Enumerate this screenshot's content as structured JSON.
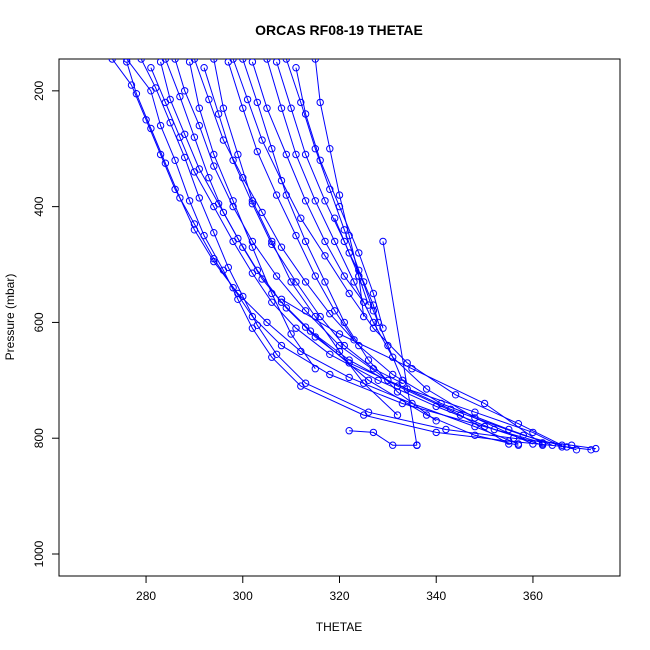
{
  "chart_data": {
    "type": "scatter",
    "title": "ORCAS RF08-19 THETAE",
    "xlabel": "THETAE",
    "ylabel": "Pressure (mbar)",
    "xlim": [
      262,
      378
    ],
    "ylim": [
      1038,
      145
    ],
    "y_reversed": true,
    "grid": false,
    "x_ticks": [
      280,
      300,
      320,
      340,
      360
    ],
    "y_ticks": [
      200,
      400,
      600,
      800,
      1000
    ],
    "series_color": "#0000ff",
    "marker": "open-circle",
    "series": [
      {
        "x": [
          276,
          281,
          283,
          286,
          289,
          292,
          296,
          299,
          302,
          306,
          312,
          325,
          340,
          355,
          367,
          372
        ],
        "y": [
          145,
          200,
          260,
          320,
          390,
          450,
          510,
          560,
          610,
          660,
          710,
          760,
          790,
          805,
          815,
          820
        ]
      },
      {
        "x": [
          279,
          282,
          285,
          288,
          291,
          294,
          297,
          300,
          303,
          307,
          313,
          326,
          342,
          356,
          368,
          373
        ],
        "y": [
          145,
          195,
          255,
          315,
          385,
          445,
          505,
          555,
          605,
          655,
          705,
          755,
          785,
          800,
          812,
          818
        ]
      },
      {
        "x": [
          273,
          277,
          280,
          283,
          286,
          290,
          294,
          298,
          302,
          308,
          318,
          333,
          350,
          362
        ],
        "y": [
          145,
          190,
          250,
          310,
          370,
          430,
          490,
          540,
          590,
          640,
          690,
          740,
          780,
          808
        ]
      },
      {
        "x": [
          284,
          287,
          290,
          293,
          296,
          300,
          304,
          309,
          315,
          322,
          334,
          348,
          360,
          366
        ],
        "y": [
          145,
          210,
          280,
          350,
          410,
          470,
          525,
          575,
          625,
          670,
          715,
          755,
          790,
          815
        ]
      },
      {
        "x": [
          290,
          293,
          296,
          300,
          304,
          308,
          313,
          318,
          324,
          331,
          341,
          355,
          364
        ],
        "y": [
          145,
          215,
          285,
          350,
          410,
          470,
          530,
          585,
          640,
          690,
          740,
          785,
          812
        ]
      },
      {
        "x": [
          298,
          301,
          304,
          308,
          312,
          317,
          322,
          327,
          334,
          344,
          357,
          366
        ],
        "y": [
          145,
          215,
          285,
          355,
          420,
          485,
          550,
          610,
          670,
          725,
          775,
          812
        ]
      },
      {
        "x": [
          305,
          308,
          311,
          315,
          319,
          323,
          327,
          331,
          338,
          348,
          360
        ],
        "y": [
          145,
          230,
          310,
          390,
          460,
          530,
          600,
          660,
          715,
          765,
          810
        ]
      },
      {
        "x": [
          309,
          312,
          315,
          318,
          321,
          324,
          327,
          330,
          333
        ],
        "y": [
          145,
          220,
          300,
          370,
          440,
          510,
          580,
          640,
          700
        ]
      },
      {
        "x": [
          315,
          316,
          318,
          320,
          322,
          324,
          325
        ],
        "y": [
          145,
          220,
          300,
          380,
          450,
          520,
          590
        ]
      },
      {
        "x": [
          286,
          288,
          291,
          294,
          298,
          302,
          307,
          313,
          320,
          330,
          343,
          358,
          369
        ],
        "y": [
          145,
          200,
          260,
          330,
          400,
          460,
          520,
          580,
          640,
          700,
          750,
          795,
          820
        ]
      },
      {
        "x": [
          294,
          296,
          299,
          302,
          306,
          310,
          315,
          320,
          325,
          332
        ],
        "y": [
          145,
          230,
          310,
          390,
          460,
          530,
          590,
          650,
          705,
          760
        ]
      },
      {
        "x": [
          300,
          303,
          306,
          309,
          313,
          317,
          321,
          326,
          332,
          340
        ],
        "y": [
          145,
          220,
          300,
          380,
          460,
          530,
          600,
          665,
          720,
          770
        ]
      },
      {
        "x": [
          281,
          284,
          287,
          290,
          294,
          298,
          302,
          306,
          311,
          318,
          328,
          340,
          352,
          362
        ],
        "y": [
          160,
          220,
          280,
          340,
          400,
          460,
          515,
          565,
          610,
          655,
          700,
          745,
          785,
          812
        ]
      },
      {
        "x": [
          311,
          313,
          316,
          320,
          324,
          327,
          329
        ],
        "y": [
          160,
          240,
          320,
          400,
          480,
          550,
          610
        ]
      },
      {
        "x": [
          276,
          278,
          281,
          284,
          287,
          290,
          294,
          299,
          305,
          312,
          322,
          335,
          348,
          357
        ],
        "y": [
          150,
          205,
          265,
          325,
          385,
          440,
          495,
          550,
          600,
          650,
          695,
          740,
          780,
          810
        ]
      },
      {
        "x": [
          292,
          295,
          298,
          302,
          306,
          311,
          316,
          321,
          327,
          333
        ],
        "y": [
          160,
          240,
          320,
          395,
          465,
          530,
          590,
          640,
          680,
          705
        ]
      },
      {
        "x": [
          302,
          305,
          309,
          313,
          317,
          321,
          325
        ],
        "y": [
          150,
          230,
          310,
          390,
          460,
          520,
          565
        ]
      },
      {
        "x": [
          297,
          300,
          303,
          307,
          311,
          315,
          319,
          323
        ],
        "y": [
          150,
          230,
          305,
          380,
          450,
          520,
          580,
          630
        ]
      },
      {
        "x": [
          283,
          285,
          288,
          291,
          295,
          299,
          303,
          308,
          314,
          322,
          332,
          345,
          355
        ],
        "y": [
          150,
          215,
          275,
          335,
          395,
          455,
          510,
          565,
          615,
          665,
          710,
          760,
          810
        ]
      },
      {
        "x": [
          307,
          310,
          313,
          317,
          321,
          324,
          326
        ],
        "y": [
          150,
          230,
          310,
          390,
          460,
          520,
          570
        ]
      },
      {
        "x": [
          319,
          322,
          325,
          327,
          328
        ],
        "y": [
          420,
          480,
          530,
          570,
          600
        ]
      },
      {
        "x": [
          289,
          291,
          294,
          298,
          302,
          306,
          310,
          315
        ],
        "y": [
          150,
          230,
          310,
          390,
          470,
          550,
          620,
          680
        ]
      },
      {
        "x": [
          308,
          320,
          335,
          350,
          362
        ],
        "y": [
          560,
          620,
          680,
          740,
          810
        ]
      },
      {
        "x": [
          329,
          336,
          336
        ],
        "y": [
          460,
          812,
          812
        ]
      },
      {
        "x": [
          322,
          327,
          331,
          336
        ],
        "y": [
          787,
          790,
          812,
          812
        ]
      },
      {
        "x": [
          313,
          326,
          338,
          348,
          357
        ],
        "y": [
          608,
          700,
          760,
          795,
          812
        ]
      }
    ]
  }
}
